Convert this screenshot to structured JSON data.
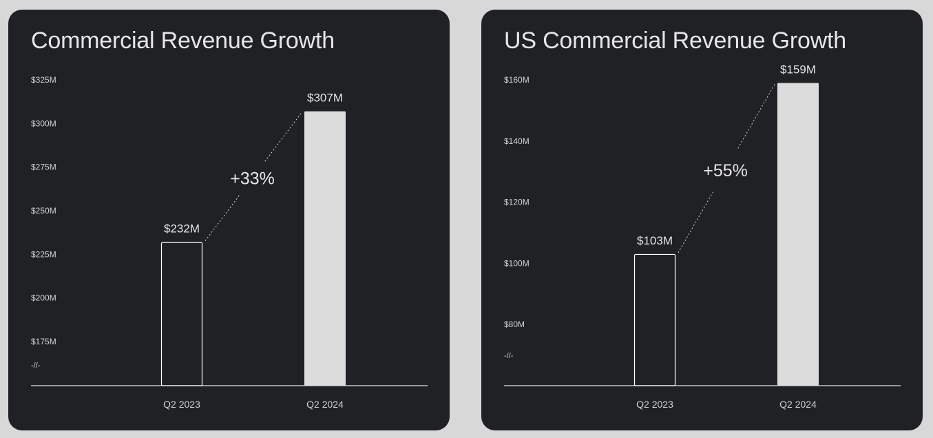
{
  "chart_data": [
    {
      "type": "bar",
      "title": "Commercial Revenue Growth",
      "categories": [
        "Q2 2023",
        "Q2 2024"
      ],
      "values": [
        232,
        307
      ],
      "data_labels": [
        "$232M",
        "$307M"
      ],
      "bar_styles": [
        "outline",
        "filled"
      ],
      "growth_label": "+33%",
      "ylim": [
        160,
        325
      ],
      "yticks": [
        175,
        200,
        225,
        250,
        275,
        300,
        325
      ],
      "ytick_labels": [
        "$175M",
        "$200M",
        "$225M",
        "$250M",
        "$275M",
        "$300M",
        "$325M"
      ],
      "axis_break_symbol": "-//-",
      "xlabel": "",
      "ylabel": "",
      "grid": false
    },
    {
      "type": "bar",
      "title": "US Commercial Revenue Growth",
      "categories": [
        "Q2 2023",
        "Q2 2024"
      ],
      "values": [
        103,
        159
      ],
      "data_labels": [
        "$103M",
        "$159M"
      ],
      "bar_styles": [
        "outline",
        "filled"
      ],
      "growth_label": "+55%",
      "ylim": [
        70,
        160
      ],
      "yticks": [
        80,
        100,
        120,
        140,
        160
      ],
      "ytick_labels": [
        "$80M",
        "$100M",
        "$120M",
        "$140M",
        "$160M"
      ],
      "axis_break_symbol": "-//-",
      "xlabel": "",
      "ylabel": "",
      "grid": false
    }
  ],
  "colors": {
    "panel_background": "#1f2124",
    "page_background": "#d8d8d8",
    "text": "#e6e6e6",
    "axis_line": "#e6e6e6",
    "filled_bar": "#dcdcdc",
    "outline_bar": "#ffffff"
  }
}
